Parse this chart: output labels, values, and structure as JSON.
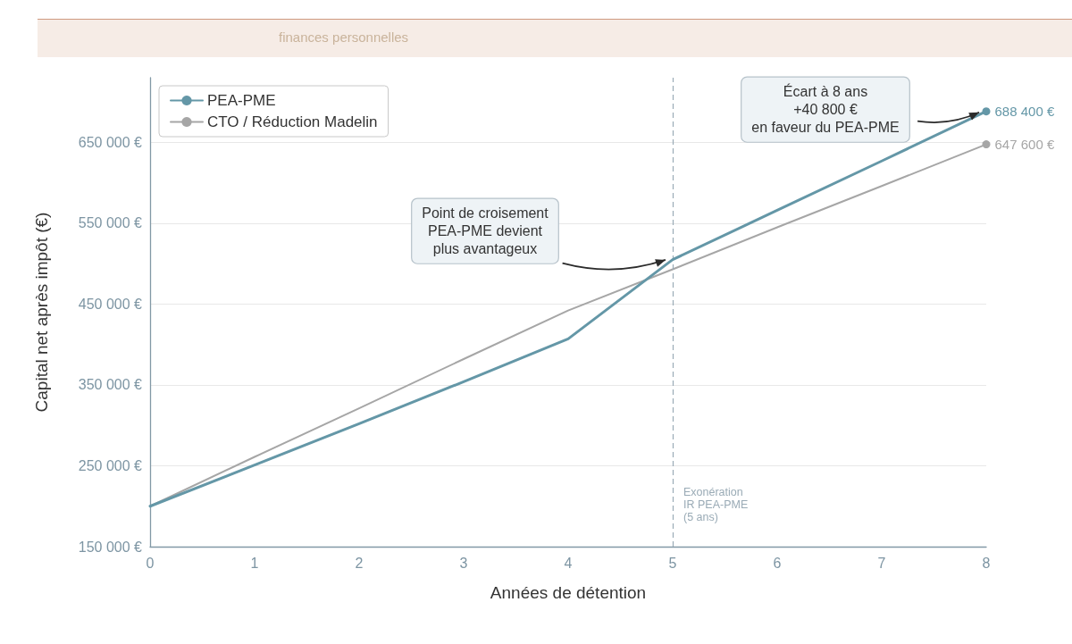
{
  "chart_data": {
    "type": "line",
    "subtitle": "finances personnelles",
    "xlabel": "Années de détention",
    "ylabel": "Capital net après impôt (€)",
    "x": [
      0,
      1,
      2,
      3,
      4,
      5,
      6,
      7,
      8
    ],
    "series": [
      {
        "name": "PEA-PME",
        "color": "#6497a7",
        "values": [
          200000,
          251000,
          302000,
          354000,
          407000,
          505000,
          566000,
          627000,
          688400
        ],
        "value_labels": [
          null,
          null,
          null,
          null,
          null,
          null,
          null,
          null,
          "688 400 €"
        ]
      },
      {
        "name": "CTO / Réduction Madelin",
        "color": "#a6a6a6",
        "values": [
          200000,
          261000,
          321000,
          382000,
          442000,
          493000,
          545000,
          596000,
          647600
        ],
        "value_labels": [
          null,
          null,
          null,
          null,
          null,
          null,
          null,
          null,
          "647 600 €"
        ]
      }
    ],
    "xlim": [
      0,
      8
    ],
    "xticks": [
      0,
      1,
      2,
      3,
      4,
      5,
      6,
      7,
      8
    ],
    "ylim": [
      150000,
      730000
    ],
    "yticks": [
      {
        "value": 150000,
        "label": "150 000 €"
      },
      {
        "value": 250000,
        "label": "250 000 €"
      },
      {
        "value": 350000,
        "label": "350 000 €"
      },
      {
        "value": 450000,
        "label": "450 000 €"
      },
      {
        "value": 550000,
        "label": "550 000 €"
      },
      {
        "value": 650000,
        "label": "650 000 €"
      }
    ],
    "grid": "y",
    "legend": "top left",
    "ref_lines": [
      {
        "axis": "x",
        "value": 5,
        "label": "Exonération\nIR PEA-PME\n(5 ans)",
        "color": "#9aabb6",
        "line_style": "dashed"
      }
    ],
    "annotations": [
      {
        "text": "Point de croisement\nPEA-PME devient\nplus avantageux",
        "x": 5,
        "y": 505000
      },
      {
        "text": "Écart à 8 ans\n+40 800 €\nen faveur du PEA-PME",
        "x": 8,
        "y": 688400
      }
    ]
  }
}
